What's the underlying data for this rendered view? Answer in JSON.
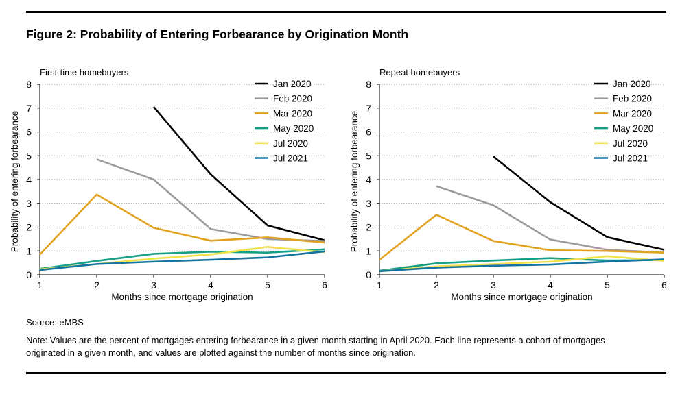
{
  "figure": {
    "title": "Figure 2:  Probability of Entering Forbearance by Origination Month",
    "source": "Source: eMBS",
    "note": "Note: Values are the percent of mortgages entering forbearance in a given month starting in April 2020. Each line represents a cohort of mortgages originated in a given month, and values are plotted against the number of months since origination."
  },
  "chart_data": [
    {
      "type": "line",
      "title": "First-time homebuyers",
      "xlabel": "Months since mortgage origination",
      "ylabel": "Probability of entering forbearance",
      "x": [
        1,
        2,
        3,
        4,
        5,
        6
      ],
      "xlim": [
        1,
        6
      ],
      "ylim": [
        0,
        8
      ],
      "yticks": [
        0,
        1,
        2,
        3,
        4,
        5,
        6,
        7,
        8
      ],
      "grid": "horizontal dotted",
      "legend": "top-right",
      "series": [
        {
          "name": "Jan 2020",
          "color": "#000000",
          "values": [
            null,
            null,
            7.05,
            4.22,
            2.07,
            1.45
          ]
        },
        {
          "name": "Feb 2020",
          "color": "#9b9b9b",
          "values": [
            null,
            4.85,
            4.0,
            1.92,
            1.5,
            1.42
          ]
        },
        {
          "name": "Mar 2020",
          "color": "#e2a11e",
          "values": [
            0.85,
            3.37,
            1.97,
            1.43,
            1.57,
            1.35
          ]
        },
        {
          "name": "May 2020",
          "color": "#17a085",
          "values": [
            0.25,
            0.58,
            0.88,
            0.97,
            0.93,
            1.07
          ]
        },
        {
          "name": "Jul 2020",
          "color": "#f2e34a",
          "values": [
            0.23,
            0.45,
            0.68,
            0.85,
            1.17,
            0.95
          ]
        },
        {
          "name": "Jul 2021",
          "color": "#14739f",
          "values": [
            0.2,
            0.45,
            0.55,
            0.63,
            0.73,
            0.98
          ]
        }
      ]
    },
    {
      "type": "line",
      "title": "Repeat homebuyers",
      "xlabel": "Months since mortgage origination",
      "ylabel": "Probability of entering forbearance",
      "x": [
        1,
        2,
        3,
        4,
        5,
        6
      ],
      "xlim": [
        1,
        6
      ],
      "ylim": [
        0,
        8
      ],
      "yticks": [
        0,
        1,
        2,
        3,
        4,
        5,
        6,
        7,
        8
      ],
      "grid": "horizontal dotted",
      "legend": "top-right",
      "series": [
        {
          "name": "Jan 2020",
          "color": "#000000",
          "values": [
            null,
            null,
            4.97,
            3.05,
            1.58,
            1.05
          ]
        },
        {
          "name": "Feb 2020",
          "color": "#9b9b9b",
          "values": [
            null,
            3.72,
            2.92,
            1.48,
            1.05,
            0.93
          ]
        },
        {
          "name": "Mar 2020",
          "color": "#e2a11e",
          "values": [
            0.63,
            2.52,
            1.42,
            1.03,
            1.0,
            0.93
          ]
        },
        {
          "name": "May 2020",
          "color": "#17a085",
          "values": [
            0.17,
            0.48,
            0.6,
            0.7,
            0.6,
            0.62
          ]
        },
        {
          "name": "Jul 2020",
          "color": "#f2e34a",
          "values": [
            0.15,
            0.35,
            0.45,
            0.55,
            0.78,
            0.58
          ]
        },
        {
          "name": "Jul 2021",
          "color": "#14739f",
          "values": [
            0.15,
            0.3,
            0.38,
            0.43,
            0.55,
            0.65
          ]
        }
      ]
    }
  ]
}
